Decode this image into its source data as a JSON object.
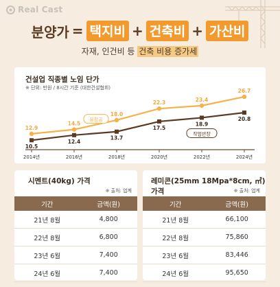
{
  "brand": {
    "name": "Real Cast"
  },
  "headline": {
    "main": "분양가",
    "eq": "=",
    "term1": "택지비",
    "plus1": "+",
    "term2": "건축비",
    "plus2": "+",
    "term3": "가산비"
  },
  "subline": {
    "prefix": "자재, 인건비 등 ",
    "highlight": "건축 비용 증가세"
  },
  "wage_chart": {
    "title": "건설업 직종별 노임 단가",
    "note": "※ 단위: 만원 / 8시간 기준 (대한건설협회)"
  },
  "chart_data": {
    "type": "line",
    "title": "건설업 직종별 노임 단가",
    "x": [
      "2014년",
      "2016년",
      "2018년",
      "2020년",
      "2022년",
      "2024년"
    ],
    "ylim": [
      8,
      29
    ],
    "series": [
      {
        "name": "용접공",
        "values": [
          12.9,
          14.5,
          18.0,
          22.3,
          23.4,
          26.7
        ],
        "color": "#f6b24a"
      },
      {
        "name": "작업반장",
        "values": [
          10.5,
          12.4,
          13.7,
          17.5,
          18.9,
          20.8
        ],
        "color": "#5a3a22"
      }
    ],
    "grid": false
  },
  "cement": {
    "title": "시멘트(40kg) 가격",
    "source": "※ 출처: 업계",
    "headers": [
      "기간",
      "금액(원)"
    ],
    "rows": [
      [
        "21년 8월",
        "4,800"
      ],
      [
        "22년 8월",
        "6,800"
      ],
      [
        "23년 6월",
        "7,400"
      ],
      [
        "24년 6월",
        "7,400"
      ]
    ]
  },
  "remicon": {
    "title": "레미콘(25mm 18Mpa*8cm, ㎥) 가격",
    "source": "※ 출처: 업계",
    "headers": [
      "기간",
      "금액(원)"
    ],
    "rows": [
      [
        "21년 8월",
        "66,100"
      ],
      [
        "22년 8월",
        "75,860"
      ],
      [
        "23년 6월",
        "83,446"
      ],
      [
        "24년 6월",
        "95,650"
      ]
    ]
  },
  "colors": {
    "background": "#f6ece0",
    "accent": "#f29a2e",
    "dark": "#5a3a22",
    "table_header": "#8a6a4e"
  }
}
